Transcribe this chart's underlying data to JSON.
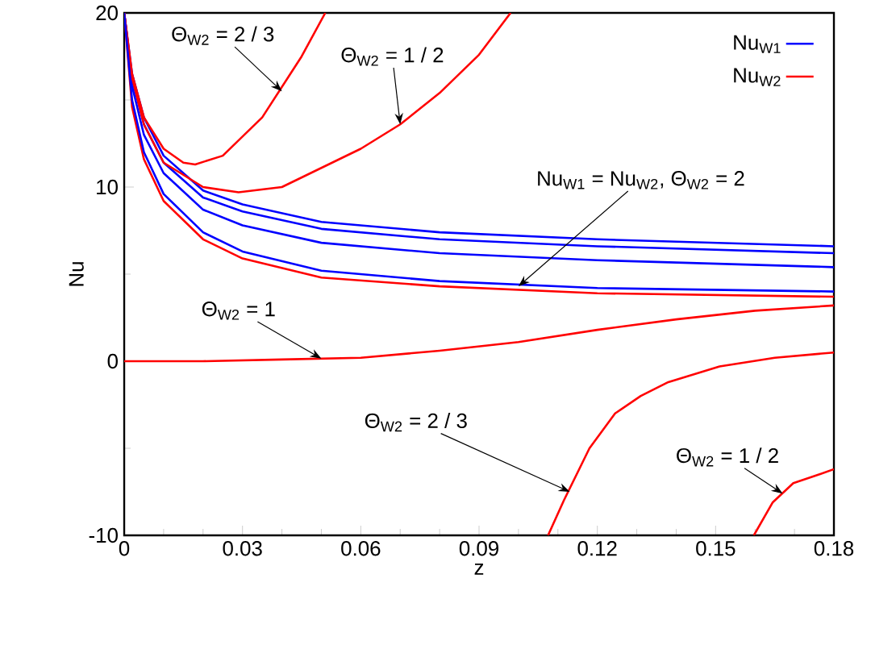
{
  "chart_data": {
    "type": "line",
    "xlabel": "z",
    "ylabel": "Nu",
    "xlim": [
      0,
      0.18
    ],
    "xticks": [
      0,
      0.03,
      0.06,
      0.09,
      0.12,
      0.15,
      0.18
    ],
    "ylim": [
      -10,
      20
    ],
    "yticks": [
      -10,
      0,
      10,
      20
    ],
    "legend": "top right",
    "grid": false,
    "marker": "none",
    "line_style": "solid",
    "series": [
      {
        "name": "Nu$_{W1}$",
        "color": "#0000ff",
        "x": [
          0,
          0.002,
          0.005,
          0.01,
          0.02,
          0.03,
          0.05,
          0.08,
          0.12,
          0.18
        ],
        "values": [
          20,
          16.5,
          14,
          11.8,
          9.8,
          9.0,
          8.0,
          7.4,
          7.0,
          6.6
        ]
      },
      {
        "color": "#0000ff",
        "x": [
          0,
          0.002,
          0.005,
          0.01,
          0.02,
          0.03,
          0.05,
          0.08,
          0.12,
          0.18
        ],
        "values": [
          20,
          16.2,
          13.6,
          11.4,
          9.4,
          8.6,
          7.6,
          7.0,
          6.6,
          6.2
        ]
      },
      {
        "color": "#0000ff",
        "x": [
          0,
          0.002,
          0.005,
          0.01,
          0.02,
          0.03,
          0.05,
          0.08,
          0.12,
          0.18
        ],
        "values": [
          20,
          15.8,
          13,
          10.8,
          8.7,
          7.8,
          6.8,
          6.2,
          5.8,
          5.4
        ]
      },
      {
        "name": "Nu$_{W2}$",
        "color": "#ff0000",
        "x": [
          0,
          0.002,
          0.005,
          0.01,
          0.015,
          0.018,
          0.025,
          0.035,
          0.045,
          0.051
        ],
        "values": [
          20,
          16.5,
          14,
          12.2,
          11.4,
          11.3,
          11.8,
          14,
          17.5,
          20
        ]
      },
      {
        "color": "#ff0000",
        "x": [
          0,
          0.002,
          0.005,
          0.01,
          0.02,
          0.029,
          0.04,
          0.06,
          0.07,
          0.08,
          0.09,
          0.098
        ],
        "values": [
          20,
          16.3,
          13.6,
          11.4,
          10.0,
          9.7,
          10.0,
          12.2,
          13.6,
          15.4,
          17.6,
          20
        ]
      },
      {
        "color": "#ff0000",
        "x": [
          0,
          0.002,
          0.005,
          0.01,
          0.02,
          0.03,
          0.05,
          0.08,
          0.12,
          0.18
        ],
        "values": [
          20,
          14.6,
          11.6,
          9.2,
          7.0,
          5.9,
          4.8,
          4.3,
          3.9,
          3.7
        ]
      },
      {
        "color": "#0000ff",
        "x": [
          0,
          0.002,
          0.005,
          0.01,
          0.02,
          0.03,
          0.05,
          0.08,
          0.12,
          0.18
        ],
        "values": [
          20,
          15,
          12,
          9.6,
          7.4,
          6.3,
          5.2,
          4.6,
          4.2,
          4.0
        ]
      },
      {
        "color": "#ff0000",
        "x": [
          0,
          0.02,
          0.04,
          0.06,
          0.08,
          0.1,
          0.12,
          0.14,
          0.16,
          0.18
        ],
        "values": [
          0,
          0,
          0.1,
          0.2,
          0.6,
          1.1,
          1.8,
          2.4,
          2.9,
          3.2
        ]
      },
      {
        "color": "#ff0000",
        "x": [
          0.1075,
          0.1115,
          0.118,
          0.1245,
          0.131,
          0.138,
          0.151,
          0.165,
          0.18
        ],
        "values": [
          -10,
          -8,
          -5,
          -3,
          -2,
          -1.2,
          -0.3,
          0.2,
          0.5
        ]
      },
      {
        "color": "#ff0000",
        "x": [
          0.1597,
          0.1645,
          0.1697,
          0.175,
          0.18
        ],
        "values": [
          -10,
          -8.1,
          -7,
          -6.6,
          -6.2
        ]
      }
    ],
    "annotations": [
      {
        "text": "Θ$_{W2}$ = 2 / 3",
        "x": 0.04,
        "y": 15.5
      },
      {
        "text": "Θ$_{W2}$ = 1 / 2",
        "x": 0.07,
        "y": 13.6
      },
      {
        "text": "Nu$_{W1}$ = Nu$_{W2}$, Θ$_{W2}$ = 2",
        "x": 0.1,
        "y": 4.3
      },
      {
        "text": "Θ$_{W2}$ = 1",
        "x": 0.05,
        "y": 0.15
      },
      {
        "text": "Θ$_{W2}$ = 2 / 3",
        "x": 0.113,
        "y": -7.5
      },
      {
        "text": "Θ$_{W2}$ = 1 / 2",
        "x": 0.167,
        "y": -7.6
      }
    ]
  }
}
